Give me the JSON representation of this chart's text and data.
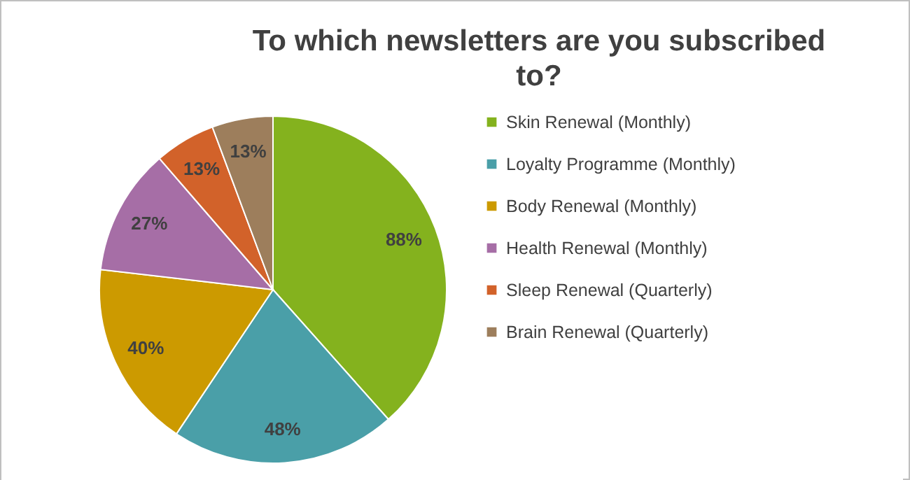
{
  "chart_data": {
    "type": "pie",
    "title": "To which newsletters are you subscribed to?",
    "categories": [
      "Skin Renewal (Monthly)",
      "Loyalty Programme (Monthly)",
      "Body Renewal (Monthly)",
      "Health Renewal (Monthly)",
      "Sleep Renewal (Quarterly)",
      "Brain Renewal (Quarterly)"
    ],
    "values": [
      88,
      48,
      40,
      27,
      13,
      13
    ],
    "value_labels": [
      "88%",
      "48%",
      "40%",
      "27%",
      "13%",
      "13%"
    ],
    "colors": [
      "#84b21e",
      "#4a9fa8",
      "#cc9a00",
      "#a66ea6",
      "#d2622a",
      "#9d7e5c"
    ],
    "legend": "right"
  }
}
